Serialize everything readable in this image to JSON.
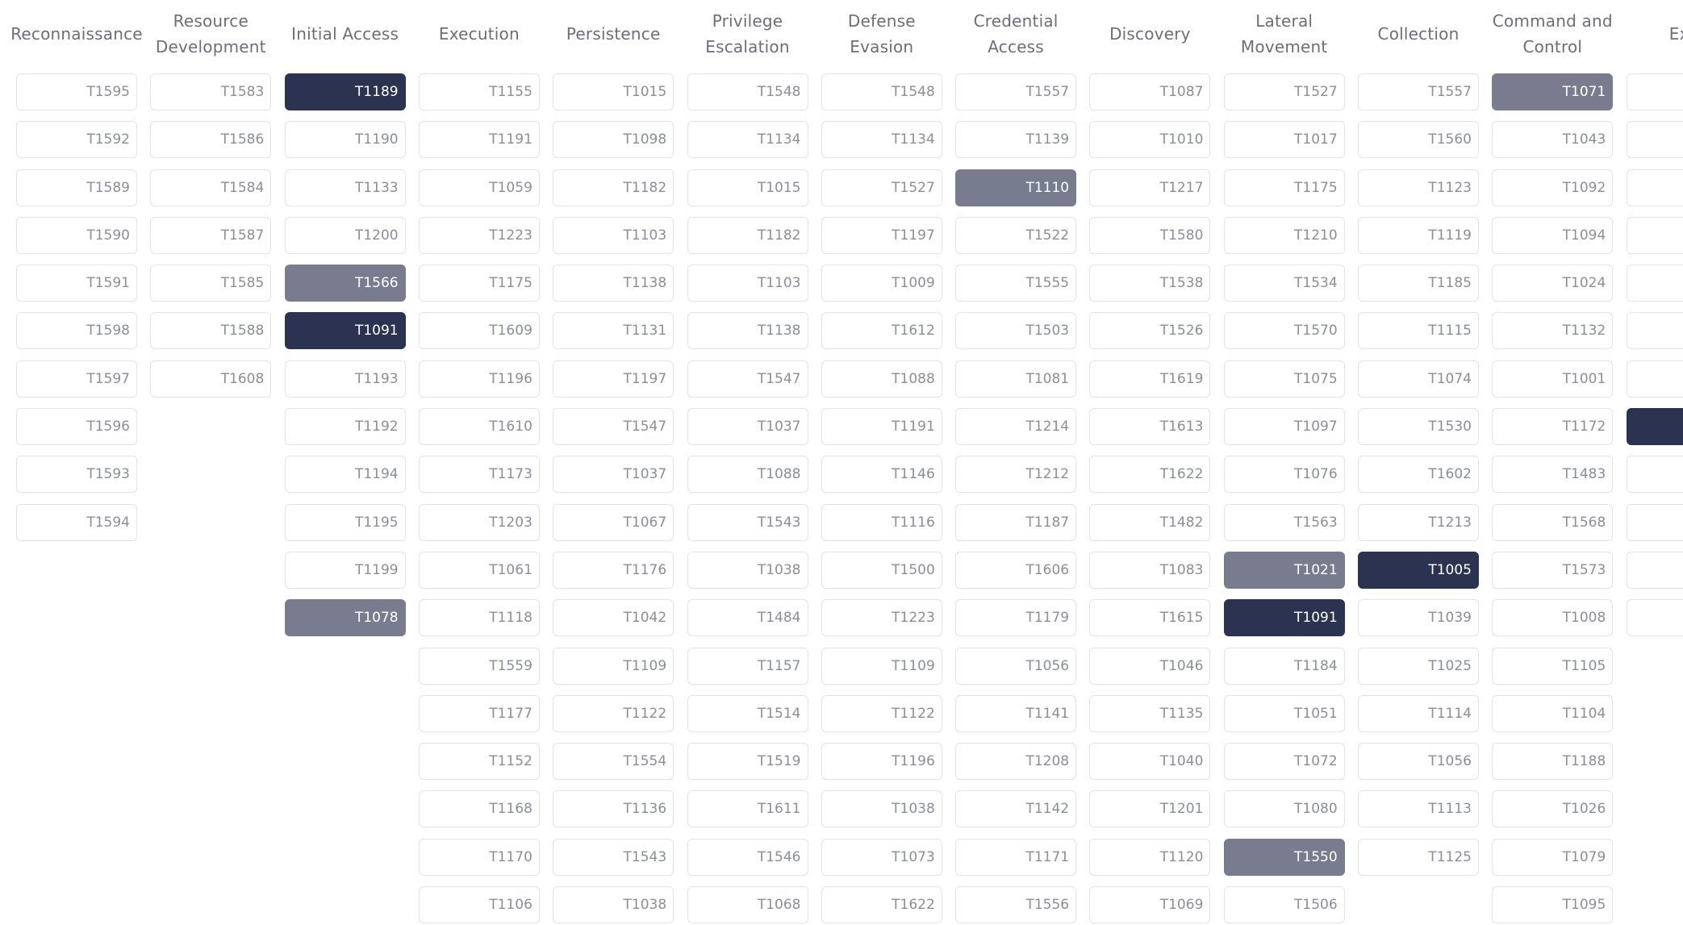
{
  "tactics": [
    {
      "name": "Reconnaissance",
      "techniques": [
        "T1595",
        "T1592",
        "T1589",
        "T1590",
        "T1591",
        "T1598",
        "T1597",
        "T1596",
        "T1593",
        "T1594"
      ],
      "highlights": {}
    },
    {
      "name": "Resource\nDevelopment",
      "techniques": [
        "T1583",
        "T1586",
        "T1584",
        "T1587",
        "T1585",
        "T1588",
        "T1608"
      ],
      "highlights": {}
    },
    {
      "name": "Initial Access",
      "techniques": [
        "T1189",
        "T1190",
        "T1133",
        "T1200",
        "T1566",
        "T1091",
        "T1193",
        "T1192",
        "T1194",
        "T1195",
        "T1199",
        "T1078"
      ],
      "highlights": {
        "T1189": "dark",
        "T1566": "mid",
        "T1091": "dark",
        "T1078": "mid"
      }
    },
    {
      "name": "Execution",
      "techniques": [
        "T1155",
        "T1191",
        "T1059",
        "T1223",
        "T1175",
        "T1609",
        "T1196",
        "T1610",
        "T1173",
        "T1203",
        "T1061",
        "T1118",
        "T1559",
        "T1177",
        "T1152",
        "T1168",
        "T1170",
        "T1106"
      ],
      "highlights": {}
    },
    {
      "name": "Persistence",
      "techniques": [
        "T1015",
        "T1098",
        "T1182",
        "T1103",
        "T1138",
        "T1131",
        "T1197",
        "T1547",
        "T1037",
        "T1067",
        "T1176",
        "T1042",
        "T1109",
        "T1122",
        "T1554",
        "T1136",
        "T1543",
        "T1038"
      ],
      "highlights": {}
    },
    {
      "name": "Privilege\nEscalation",
      "techniques": [
        "T1548",
        "T1134",
        "T1015",
        "T1182",
        "T1103",
        "T1138",
        "T1547",
        "T1037",
        "T1088",
        "T1543",
        "T1038",
        "T1484",
        "T1157",
        "T1514",
        "T1519",
        "T1611",
        "T1546",
        "T1068"
      ],
      "highlights": {}
    },
    {
      "name": "Defense Evasion",
      "techniques": [
        "T1548",
        "T1134",
        "T1527",
        "T1197",
        "T1009",
        "T1612",
        "T1088",
        "T1191",
        "T1146",
        "T1116",
        "T1500",
        "T1223",
        "T1109",
        "T1122",
        "T1196",
        "T1038",
        "T1073",
        "T1622"
      ],
      "highlights": {}
    },
    {
      "name": "Credential\nAccess",
      "techniques": [
        "T1557",
        "T1139",
        "T1110",
        "T1522",
        "T1555",
        "T1503",
        "T1081",
        "T1214",
        "T1212",
        "T1187",
        "T1606",
        "T1179",
        "T1056",
        "T1141",
        "T1208",
        "T1142",
        "T1171",
        "T1556"
      ],
      "highlights": {
        "T1110": "mid"
      }
    },
    {
      "name": "Discovery",
      "techniques": [
        "T1087",
        "T1010",
        "T1217",
        "T1580",
        "T1538",
        "T1526",
        "T1619",
        "T1613",
        "T1622",
        "T1482",
        "T1083",
        "T1615",
        "T1046",
        "T1135",
        "T1040",
        "T1201",
        "T1120",
        "T1069"
      ],
      "highlights": {}
    },
    {
      "name": "Lateral\nMovement",
      "techniques": [
        "T1527",
        "T1017",
        "T1175",
        "T1210",
        "T1534",
        "T1570",
        "T1075",
        "T1097",
        "T1076",
        "T1563",
        "T1021",
        "T1091",
        "T1184",
        "T1051",
        "T1072",
        "T1080",
        "T1550",
        "T1506"
      ],
      "highlights": {
        "T1021": "mid",
        "T1091": "dark",
        "T1550": "mid"
      }
    },
    {
      "name": "Collection",
      "techniques": [
        "T1557",
        "T1560",
        "T1123",
        "T1119",
        "T1185",
        "T1115",
        "T1074",
        "T1530",
        "T1602",
        "T1213",
        "T1005",
        "T1039",
        "T1025",
        "T1114",
        "T1056",
        "T1113",
        "T1125"
      ],
      "highlights": {
        "T1005": "dark"
      }
    },
    {
      "name": "Command and\nControl",
      "techniques": [
        "T1071",
        "T1043",
        "T1092",
        "T1094",
        "T1024",
        "T1132",
        "T1001",
        "T1172",
        "T1483",
        "T1568",
        "T1573",
        "T1008",
        "T1105",
        "T1104",
        "T1188",
        "T1026",
        "T1079",
        "T1095"
      ],
      "highlights": {
        "T1071": "mid"
      }
    },
    {
      "name": "Exfil",
      "techniques": [
        "",
        "",
        "",
        "",
        "",
        "",
        "",
        "",
        "",
        "",
        "",
        ""
      ],
      "highlights": {
        "7": "dark"
      }
    }
  ]
}
